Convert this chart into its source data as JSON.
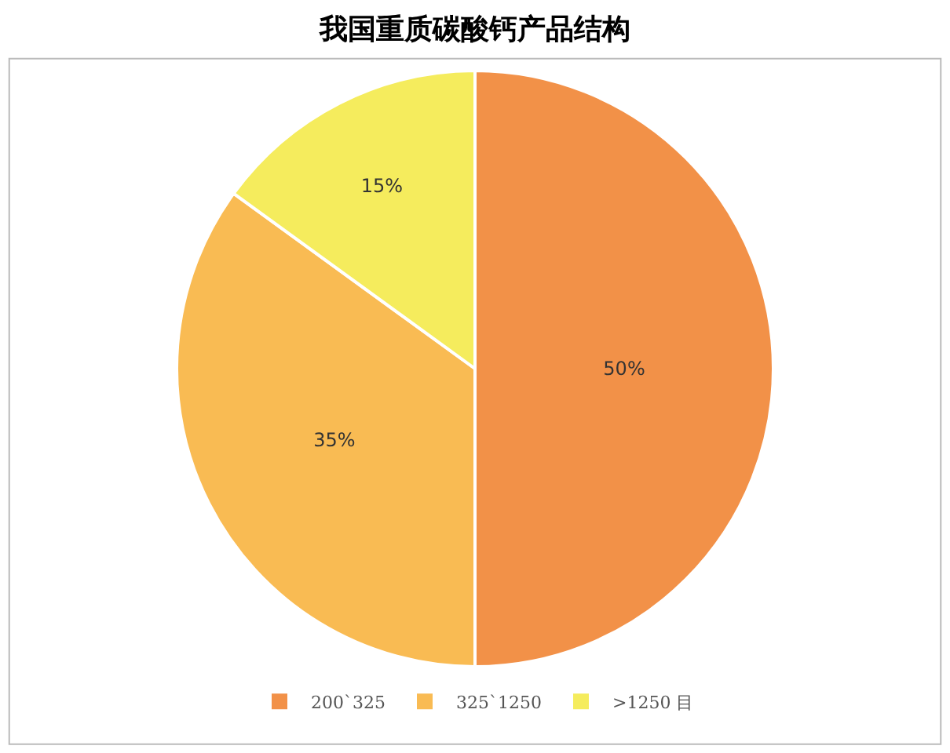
{
  "chart_data": {
    "type": "pie",
    "title": "我国重质碳酸钙产品结构",
    "categories": [
      "200`325",
      "325`1250",
      ">1250 目"
    ],
    "values": [
      50,
      35,
      15
    ],
    "colors": [
      "#f29148",
      "#f9bb53",
      "#f5ec5d"
    ],
    "value_labels": [
      "50%",
      "35%",
      "15%"
    ],
    "legend": "bottom"
  }
}
